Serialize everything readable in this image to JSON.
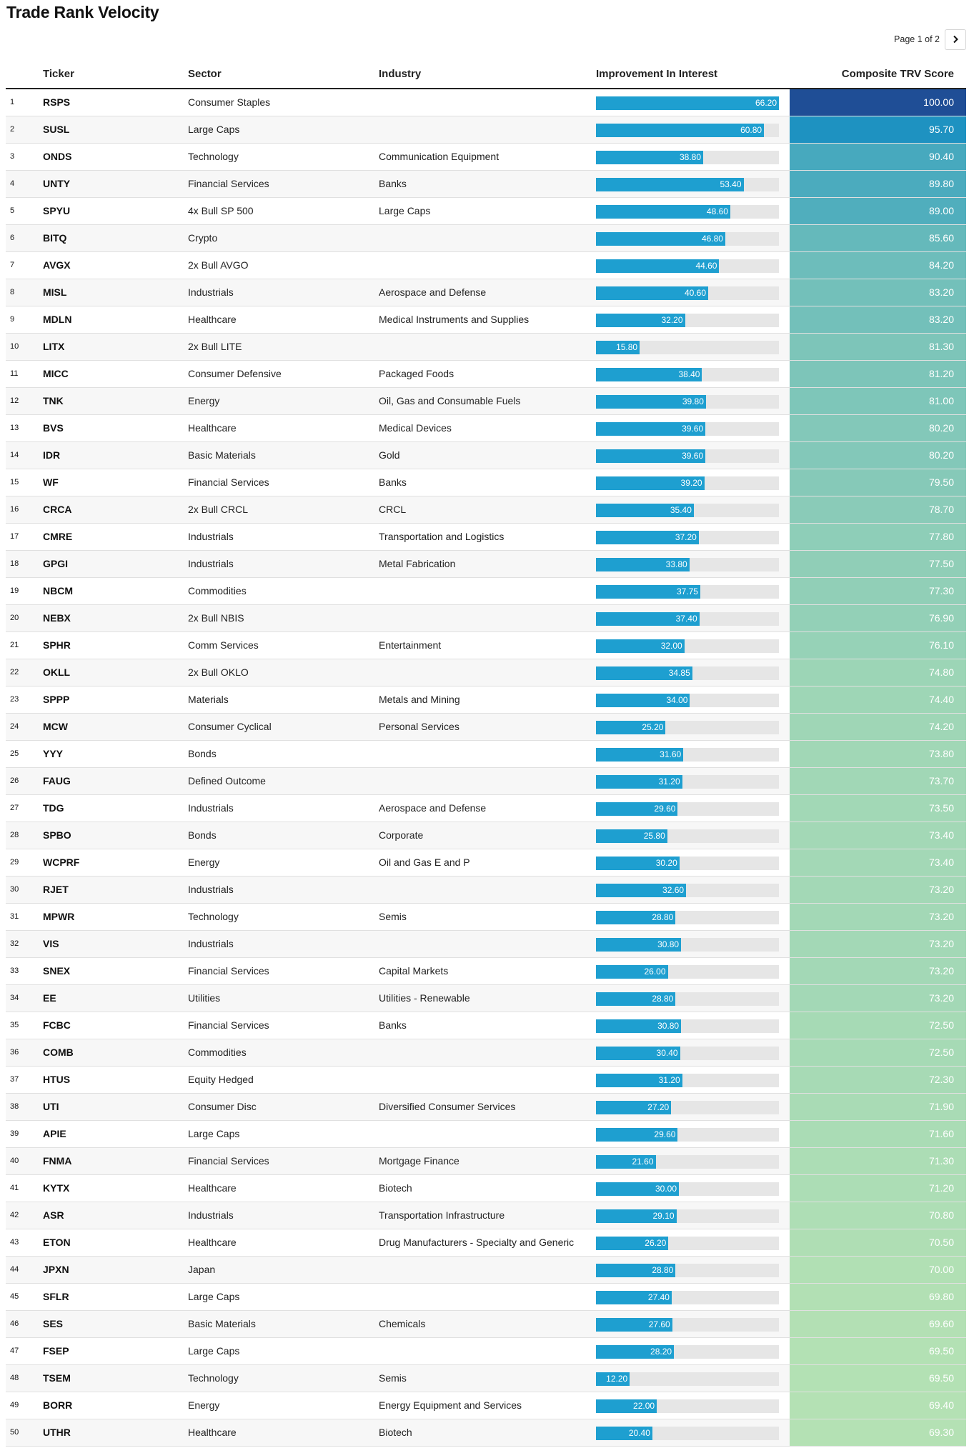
{
  "page": {
    "title": "Trade Rank Velocity"
  },
  "pager": {
    "label": "Page 1 of 2",
    "next_icon": "chevron-right-icon"
  },
  "columns": {
    "ticker": "Ticker",
    "sector": "Sector",
    "industry": "Industry",
    "improvement": "Improvement In Interest",
    "score": "Composite TRV Score"
  },
  "colors": {
    "bar": "#1e9fd0",
    "bar_track": "#e6e6e6",
    "score_high": "#1f4e96",
    "score_low": "#b4e1b4"
  },
  "scales": {
    "improvement_max": 66.2,
    "score_max": 100.0,
    "score_min": 69.3
  },
  "rows": [
    {
      "rank": "1",
      "ticker": "RSPS",
      "sector": "Consumer Staples",
      "industry": "",
      "improvement": "66.20",
      "score": "100.00"
    },
    {
      "rank": "2",
      "ticker": "SUSL",
      "sector": "Large Caps",
      "industry": "",
      "improvement": "60.80",
      "score": "95.70"
    },
    {
      "rank": "3",
      "ticker": "ONDS",
      "sector": "Technology",
      "industry": "Communication Equipment",
      "improvement": "38.80",
      "score": "90.40"
    },
    {
      "rank": "4",
      "ticker": "UNTY",
      "sector": "Financial Services",
      "industry": "Banks",
      "improvement": "53.40",
      "score": "89.80"
    },
    {
      "rank": "5",
      "ticker": "SPYU",
      "sector": "4x Bull SP 500",
      "industry": "Large Caps",
      "improvement": "48.60",
      "score": "89.00"
    },
    {
      "rank": "6",
      "ticker": "BITQ",
      "sector": "Crypto",
      "industry": "",
      "improvement": "46.80",
      "score": "85.60"
    },
    {
      "rank": "7",
      "ticker": "AVGX",
      "sector": "2x Bull AVGO",
      "industry": "",
      "improvement": "44.60",
      "score": "84.20"
    },
    {
      "rank": "8",
      "ticker": "MISL",
      "sector": "Industrials",
      "industry": "Aerospace and Defense",
      "improvement": "40.60",
      "score": "83.20"
    },
    {
      "rank": "9",
      "ticker": "MDLN",
      "sector": "Healthcare",
      "industry": "Medical Instruments and Supplies",
      "improvement": "32.20",
      "score": "83.20"
    },
    {
      "rank": "10",
      "ticker": "LITX",
      "sector": "2x Bull LITE",
      "industry": "",
      "improvement": "15.80",
      "score": "81.30"
    },
    {
      "rank": "11",
      "ticker": "MICC",
      "sector": "Consumer Defensive",
      "industry": "Packaged Foods",
      "improvement": "38.40",
      "score": "81.20"
    },
    {
      "rank": "12",
      "ticker": "TNK",
      "sector": "Energy",
      "industry": "Oil, Gas and Consumable Fuels",
      "improvement": "39.80",
      "score": "81.00"
    },
    {
      "rank": "13",
      "ticker": "BVS",
      "sector": "Healthcare",
      "industry": "Medical Devices",
      "improvement": "39.60",
      "score": "80.20"
    },
    {
      "rank": "14",
      "ticker": "IDR",
      "sector": "Basic Materials",
      "industry": "Gold",
      "improvement": "39.60",
      "score": "80.20"
    },
    {
      "rank": "15",
      "ticker": "WF",
      "sector": "Financial Services",
      "industry": "Banks",
      "improvement": "39.20",
      "score": "79.50"
    },
    {
      "rank": "16",
      "ticker": "CRCA",
      "sector": "2x Bull CRCL",
      "industry": "CRCL",
      "improvement": "35.40",
      "score": "78.70"
    },
    {
      "rank": "17",
      "ticker": "CMRE",
      "sector": "Industrials",
      "industry": "Transportation and Logistics",
      "improvement": "37.20",
      "score": "77.80"
    },
    {
      "rank": "18",
      "ticker": "GPGI",
      "sector": "Industrials",
      "industry": "Metal Fabrication",
      "improvement": "33.80",
      "score": "77.50"
    },
    {
      "rank": "19",
      "ticker": "NBCM",
      "sector": "Commodities",
      "industry": "",
      "improvement": "37.75",
      "score": "77.30"
    },
    {
      "rank": "20",
      "ticker": "NEBX",
      "sector": "2x Bull NBIS",
      "industry": "",
      "improvement": "37.40",
      "score": "76.90"
    },
    {
      "rank": "21",
      "ticker": "SPHR",
      "sector": "Comm Services",
      "industry": "Entertainment",
      "improvement": "32.00",
      "score": "76.10"
    },
    {
      "rank": "22",
      "ticker": "OKLL",
      "sector": "2x Bull OKLO",
      "industry": "",
      "improvement": "34.85",
      "score": "74.80"
    },
    {
      "rank": "23",
      "ticker": "SPPP",
      "sector": "Materials",
      "industry": "Metals and Mining",
      "improvement": "34.00",
      "score": "74.40"
    },
    {
      "rank": "24",
      "ticker": "MCW",
      "sector": "Consumer Cyclical",
      "industry": "Personal Services",
      "improvement": "25.20",
      "score": "74.20"
    },
    {
      "rank": "25",
      "ticker": "YYY",
      "sector": "Bonds",
      "industry": "",
      "improvement": "31.60",
      "score": "73.80"
    },
    {
      "rank": "26",
      "ticker": "FAUG",
      "sector": "Defined Outcome",
      "industry": "",
      "improvement": "31.20",
      "score": "73.70"
    },
    {
      "rank": "27",
      "ticker": "TDG",
      "sector": "Industrials",
      "industry": "Aerospace and Defense",
      "improvement": "29.60",
      "score": "73.50"
    },
    {
      "rank": "28",
      "ticker": "SPBO",
      "sector": "Bonds",
      "industry": "Corporate",
      "improvement": "25.80",
      "score": "73.40"
    },
    {
      "rank": "29",
      "ticker": "WCPRF",
      "sector": "Energy",
      "industry": "Oil and Gas E and P",
      "improvement": "30.20",
      "score": "73.40"
    },
    {
      "rank": "30",
      "ticker": "RJET",
      "sector": "Industrials",
      "industry": "",
      "improvement": "32.60",
      "score": "73.20"
    },
    {
      "rank": "31",
      "ticker": "MPWR",
      "sector": "Technology",
      "industry": "Semis",
      "improvement": "28.80",
      "score": "73.20"
    },
    {
      "rank": "32",
      "ticker": "VIS",
      "sector": "Industrials",
      "industry": "",
      "improvement": "30.80",
      "score": "73.20"
    },
    {
      "rank": "33",
      "ticker": "SNEX",
      "sector": "Financial Services",
      "industry": "Capital Markets",
      "improvement": "26.00",
      "score": "73.20"
    },
    {
      "rank": "34",
      "ticker": "EE",
      "sector": "Utilities",
      "industry": "Utilities - Renewable",
      "improvement": "28.80",
      "score": "73.20"
    },
    {
      "rank": "35",
      "ticker": "FCBC",
      "sector": "Financial Services",
      "industry": "Banks",
      "improvement": "30.80",
      "score": "72.50"
    },
    {
      "rank": "36",
      "ticker": "COMB",
      "sector": "Commodities",
      "industry": "",
      "improvement": "30.40",
      "score": "72.50"
    },
    {
      "rank": "37",
      "ticker": "HTUS",
      "sector": "Equity Hedged",
      "industry": "",
      "improvement": "31.20",
      "score": "72.30"
    },
    {
      "rank": "38",
      "ticker": "UTI",
      "sector": "Consumer Disc",
      "industry": "Diversified Consumer Services",
      "improvement": "27.20",
      "score": "71.90"
    },
    {
      "rank": "39",
      "ticker": "APIE",
      "sector": "Large Caps",
      "industry": "",
      "improvement": "29.60",
      "score": "71.60"
    },
    {
      "rank": "40",
      "ticker": "FNMA",
      "sector": "Financial Services",
      "industry": "Mortgage Finance",
      "improvement": "21.60",
      "score": "71.30"
    },
    {
      "rank": "41",
      "ticker": "KYTX",
      "sector": "Healthcare",
      "industry": "Biotech",
      "improvement": "30.00",
      "score": "71.20"
    },
    {
      "rank": "42",
      "ticker": "ASR",
      "sector": "Industrials",
      "industry": "Transportation Infrastructure",
      "improvement": "29.10",
      "score": "70.80"
    },
    {
      "rank": "43",
      "ticker": "ETON",
      "sector": "Healthcare",
      "industry": "Drug Manufacturers - Specialty and Generic",
      "improvement": "26.20",
      "score": "70.50"
    },
    {
      "rank": "44",
      "ticker": "JPXN",
      "sector": "Japan",
      "industry": "",
      "improvement": "28.80",
      "score": "70.00"
    },
    {
      "rank": "45",
      "ticker": "SFLR",
      "sector": "Large Caps",
      "industry": "",
      "improvement": "27.40",
      "score": "69.80"
    },
    {
      "rank": "46",
      "ticker": "SES",
      "sector": "Basic Materials",
      "industry": "Chemicals",
      "improvement": "27.60",
      "score": "69.60"
    },
    {
      "rank": "47",
      "ticker": "FSEP",
      "sector": "Large Caps",
      "industry": "",
      "improvement": "28.20",
      "score": "69.50"
    },
    {
      "rank": "48",
      "ticker": "TSEM",
      "sector": "Technology",
      "industry": "Semis",
      "improvement": "12.20",
      "score": "69.50"
    },
    {
      "rank": "49",
      "ticker": "BORR",
      "sector": "Energy",
      "industry": "Energy Equipment and Services",
      "improvement": "22.00",
      "score": "69.40"
    },
    {
      "rank": "50",
      "ticker": "UTHR",
      "sector": "Healthcare",
      "industry": "Biotech",
      "improvement": "20.40",
      "score": "69.30"
    }
  ]
}
